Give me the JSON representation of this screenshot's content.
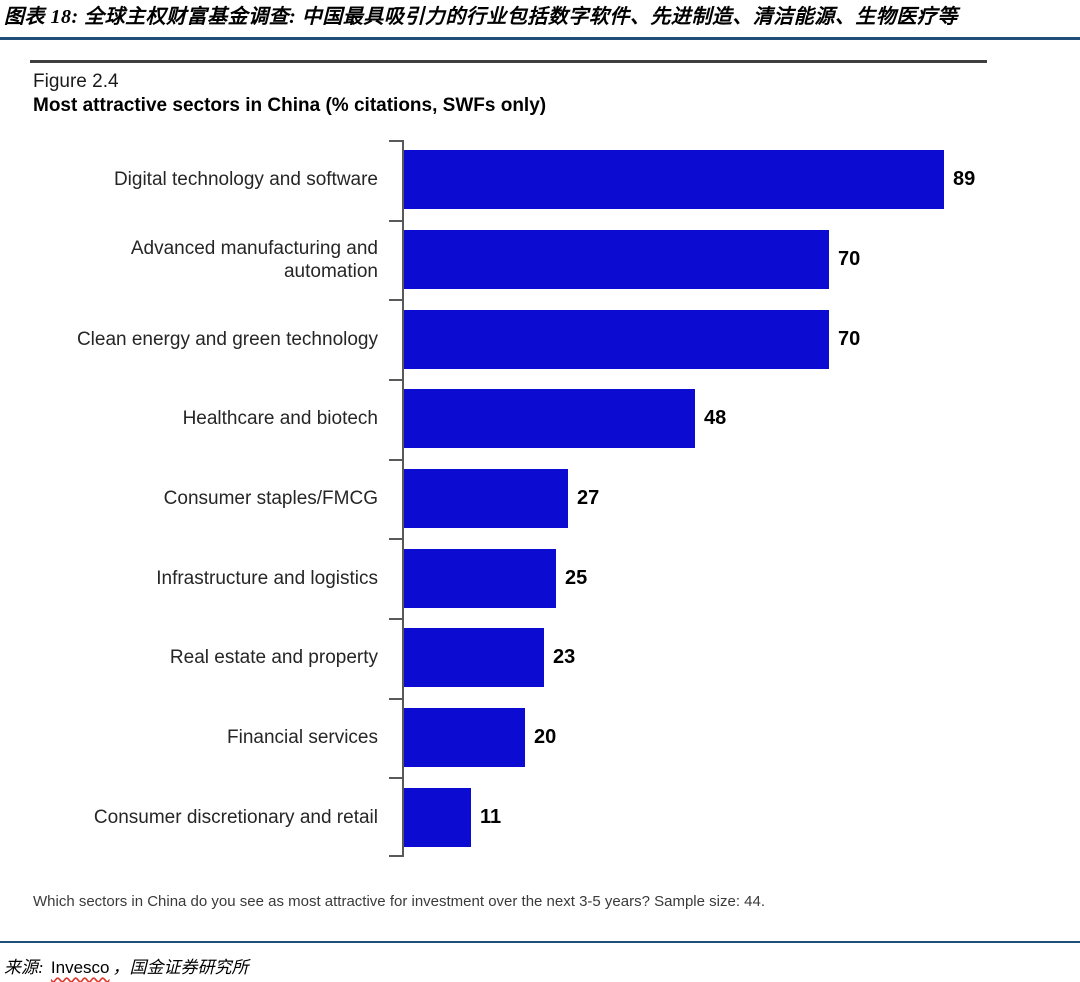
{
  "page": {
    "title": "图表 18: 全球主权财富基金调查: 中国最具吸引力的行业包括数字软件、先进制造、清洁能源、生物医疗等"
  },
  "figure": {
    "label": "Figure 2.4",
    "subtitle": "Most attractive sectors in China (% citations, SWFs only)",
    "footnote": "Which sectors in China do you see as most attractive for investment over the next 3-5 years? Sample size: 44."
  },
  "source": {
    "label": "来源:",
    "vendor": "Invesco",
    "rest": "，国金证券研究所"
  },
  "chart_data": {
    "type": "bar",
    "orientation": "horizontal",
    "title": "Most attractive sectors in China (% citations, SWFs only)",
    "categories": [
      "Digital technology and software",
      "Advanced manufacturing and automation",
      "Clean energy and green technology",
      "Healthcare and biotech",
      "Consumer staples/FMCG",
      "Infrastructure and logistics",
      "Real estate and property",
      "Financial services",
      "Consumer discretionary and retail"
    ],
    "values": [
      89,
      70,
      70,
      48,
      27,
      25,
      23,
      20,
      11
    ],
    "xlabel": "% citations",
    "xlim": [
      0,
      100
    ],
    "grid": false,
    "legend": "none",
    "value_labels": "end-of-bar",
    "bar_color": "#0b0bd2"
  },
  "colors": {
    "bar": "#0b0bd2",
    "rule_navy": "#1f4e79",
    "rule_dark": "#3f3f3f",
    "axis_gray": "#595959",
    "squiggle_red": "#e03c31"
  }
}
